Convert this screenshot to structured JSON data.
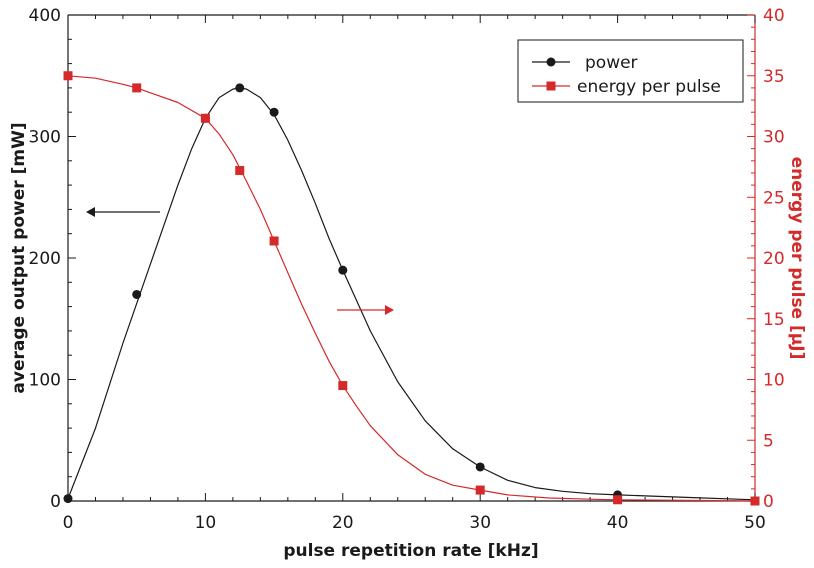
{
  "chart_data": {
    "type": "line",
    "xlabel": "pulse repetition rate [kHz]",
    "ylabel_left": "average output power [mW]",
    "ylabel_right": "energy per pulse [μJ]",
    "xlim": [
      0,
      50
    ],
    "ylim_left": [
      0,
      400
    ],
    "ylim_right": [
      0,
      40
    ],
    "x_ticks": [
      0,
      10,
      20,
      30,
      40,
      50
    ],
    "y_left_ticks": [
      0,
      100,
      200,
      300,
      400
    ],
    "y_right_ticks": [
      0,
      5,
      10,
      15,
      20,
      25,
      30,
      35,
      40
    ],
    "grid": false,
    "legend_position": "top-right",
    "series": [
      {
        "name": "power",
        "axis": "left",
        "color": "#1a1a1a",
        "marker": "circle",
        "x": [
          0,
          5,
          10,
          12.5,
          15,
          20,
          30,
          40,
          50
        ],
        "values": [
          2,
          170,
          315,
          340,
          320,
          190,
          28,
          5,
          0
        ],
        "fit_x": [
          0,
          2,
          4,
          6,
          8,
          9,
          10,
          11,
          12,
          12.5,
          13,
          14,
          15,
          16,
          17,
          18,
          19,
          20,
          22,
          24,
          26,
          28,
          30,
          32,
          34,
          36,
          38,
          40,
          45,
          50
        ],
        "fit_y": [
          2,
          60,
          130,
          195,
          260,
          290,
          315,
          332,
          339,
          340,
          339,
          332,
          318,
          297,
          272,
          245,
          216,
          190,
          140,
          98,
          66,
          43,
          28,
          17,
          11,
          8,
          6,
          5,
          3,
          1
        ]
      },
      {
        "name": "energy per pulse",
        "axis": "right",
        "color": "#d42a2a",
        "marker": "square",
        "x": [
          0,
          5,
          10,
          12.5,
          15,
          20,
          30,
          40,
          50
        ],
        "values": [
          35,
          34,
          31.5,
          27.2,
          21.4,
          9.5,
          0.9,
          0.1,
          0
        ],
        "fit_x": [
          0,
          2,
          4,
          5,
          6,
          8,
          10,
          11,
          12,
          13,
          14,
          15,
          16,
          17,
          18,
          19,
          20,
          21,
          22,
          24,
          26,
          28,
          30,
          32,
          35,
          38,
          40,
          45,
          50
        ],
        "fit_y": [
          35,
          34.8,
          34.3,
          34,
          33.6,
          32.8,
          31.5,
          30.2,
          28.5,
          26.3,
          24,
          21.4,
          18.8,
          16.2,
          13.8,
          11.5,
          9.5,
          7.8,
          6.2,
          3.8,
          2.2,
          1.3,
          0.9,
          0.5,
          0.25,
          0.15,
          0.1,
          0.05,
          0
        ]
      }
    ]
  },
  "colors": {
    "axis_left": "#1a1a1a",
    "axis_right": "#d42a2a"
  },
  "annotations": {
    "left_arrow": "arrow pointing to left axis",
    "right_arrow": "arrow pointing to right axis"
  }
}
